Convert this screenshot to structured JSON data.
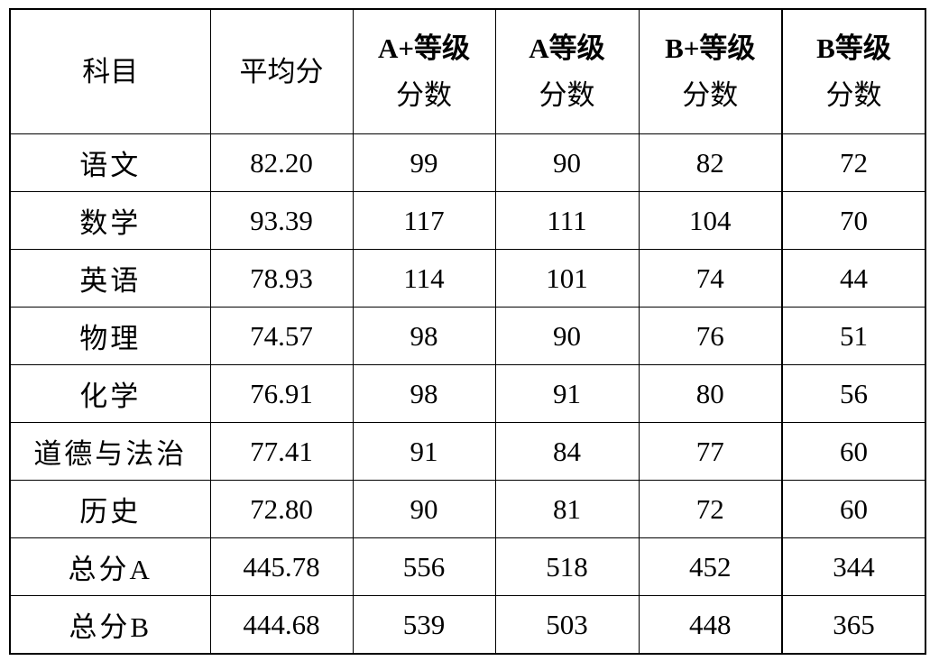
{
  "headers": [
    {
      "line1": "科目",
      "line2": ""
    },
    {
      "line1": "平均分",
      "line2": ""
    },
    {
      "line1": "A+等级",
      "line2": "分数"
    },
    {
      "line1": "A等级",
      "line2": "分数"
    },
    {
      "line1": "B+等级",
      "line2": "分数"
    },
    {
      "line1": "B等级",
      "line2": "分数"
    }
  ],
  "rows": [
    [
      "语文",
      "82.20",
      "99",
      "90",
      "82",
      "72"
    ],
    [
      "数学",
      "93.39",
      "117",
      "111",
      "104",
      "70"
    ],
    [
      "英语",
      "78.93",
      "114",
      "101",
      "74",
      "44"
    ],
    [
      "物理",
      "74.57",
      "98",
      "90",
      "76",
      "51"
    ],
    [
      "化学",
      "76.91",
      "98",
      "91",
      "80",
      "56"
    ],
    [
      "道德与法治",
      "77.41",
      "91",
      "84",
      "77",
      "60"
    ],
    [
      "历史",
      "72.80",
      "90",
      "81",
      "72",
      "60"
    ],
    [
      "总分A",
      "445.78",
      "556",
      "518",
      "452",
      "344"
    ],
    [
      "总分B",
      "444.68",
      "539",
      "503",
      "448",
      "365"
    ]
  ]
}
